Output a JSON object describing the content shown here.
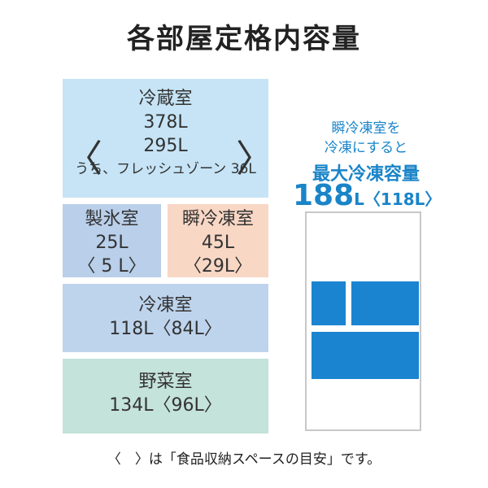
{
  "title": "各部屋定格内容量",
  "compartments": {
    "refrigerator": {
      "name": "冷蔵室",
      "total": "378L",
      "bracket_value": "295L",
      "fresh_zone": "うち、フレッシュゾーン 36L",
      "open": "〈",
      "close": "〉"
    },
    "ice": {
      "name": "製氷室",
      "total": "25L",
      "usable": "〈 5 L〉"
    },
    "instant_freeze": {
      "name": "瞬冷凍室",
      "total": "45L",
      "usable": "〈29L〉"
    },
    "freezer": {
      "name": "冷凍室",
      "total": "118L〈84L〉"
    },
    "vegetable": {
      "name": "野菜室",
      "total": "134L〈96L〉"
    }
  },
  "side_note": {
    "line1": "瞬冷凍室を",
    "line2": "冷凍にすると",
    "headline": "最大冷凍容量",
    "big_value": "188",
    "unit_value": "L〈118L〉"
  },
  "colors": {
    "accent": "#1a84c8",
    "refrigerator": "#c6e4f6",
    "ice": "#b9cfea",
    "instant_freeze": "#f8d7c5",
    "freezer": "#bed4ed",
    "vegetable": "#c4e3da"
  },
  "footnote": "〈　〉は「食品収納スペースの目安」です。"
}
